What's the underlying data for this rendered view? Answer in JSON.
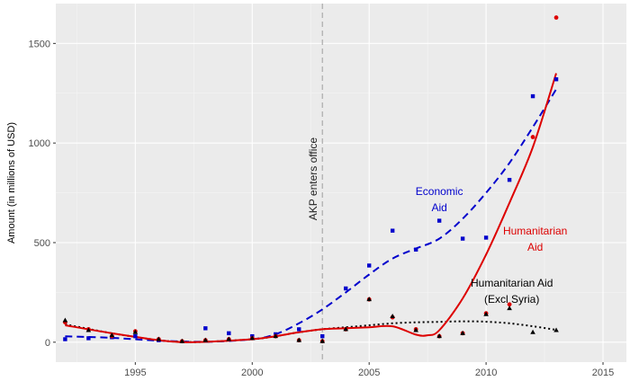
{
  "chart_data": {
    "type": "scatter",
    "title": "",
    "xlabel": "",
    "ylabel": "Amount (in millions of USD)",
    "xlim": [
      1991.6,
      2016.0
    ],
    "ylim": [
      -100,
      1700
    ],
    "x_ticks": [
      1995,
      2000,
      2005,
      2010,
      2015
    ],
    "y_ticks": [
      0,
      500,
      1000,
      1500
    ],
    "grid": true,
    "legend": "none",
    "vline": {
      "x": 2003,
      "label": "AKP enters office",
      "color": "#aaaaaa"
    },
    "series": [
      {
        "name": "Economic Aid",
        "label_lines": [
          "Economic",
          "Aid"
        ],
        "color": "#0000cc",
        "marker": "square",
        "line_style": "dashed",
        "label_pos": [
          2008.0,
          740
        ],
        "points": [
          [
            1992,
            15
          ],
          [
            1993,
            20
          ],
          [
            1994,
            25
          ],
          [
            1995,
            30
          ],
          [
            1996,
            10
          ],
          [
            1998,
            70
          ],
          [
            1999,
            45
          ],
          [
            2000,
            30
          ],
          [
            2001,
            40
          ],
          [
            2002,
            65
          ],
          [
            2003,
            30
          ],
          [
            2004,
            270
          ],
          [
            2005,
            385
          ],
          [
            2006,
            560
          ],
          [
            2007,
            465
          ],
          [
            2008,
            610
          ],
          [
            2009,
            520
          ],
          [
            2010,
            525
          ],
          [
            2011,
            815
          ],
          [
            2012,
            1235
          ],
          [
            2013,
            1320
          ]
        ],
        "trend": [
          [
            1992,
            30
          ],
          [
            1994,
            22
          ],
          [
            1996,
            8
          ],
          [
            1998,
            2
          ],
          [
            2000,
            15
          ],
          [
            2001,
            40
          ],
          [
            2002,
            95
          ],
          [
            2003,
            165
          ],
          [
            2004,
            250
          ],
          [
            2005,
            340
          ],
          [
            2006,
            420
          ],
          [
            2007,
            470
          ],
          [
            2008,
            520
          ],
          [
            2009,
            620
          ],
          [
            2010,
            750
          ],
          [
            2011,
            900
          ],
          [
            2012,
            1080
          ],
          [
            2013,
            1270
          ]
        ]
      },
      {
        "name": "Humanitarian Aid",
        "label_lines": [
          "Humanitarian",
          "Aid"
        ],
        "color": "#dd0000",
        "marker": "circle",
        "line_style": "solid",
        "label_pos": [
          2012.1,
          540
        ],
        "points": [
          [
            1992,
            100
          ],
          [
            1993,
            65
          ],
          [
            1994,
            30
          ],
          [
            1995,
            55
          ],
          [
            1996,
            15
          ],
          [
            1997,
            5
          ],
          [
            1998,
            10
          ],
          [
            1999,
            15
          ],
          [
            2000,
            20
          ],
          [
            2001,
            30
          ],
          [
            2002,
            10
          ],
          [
            2003,
            5
          ],
          [
            2004,
            65
          ],
          [
            2005,
            215
          ],
          [
            2006,
            125
          ],
          [
            2007,
            65
          ],
          [
            2008,
            30
          ],
          [
            2009,
            45
          ],
          [
            2010,
            145
          ],
          [
            2011,
            190
          ],
          [
            2012,
            1030
          ],
          [
            2013,
            1630
          ]
        ],
        "trend": [
          [
            1992,
            85
          ],
          [
            1994,
            45
          ],
          [
            1996,
            10
          ],
          [
            1997,
            0
          ],
          [
            1998,
            2
          ],
          [
            2000,
            15
          ],
          [
            2001,
            30
          ],
          [
            2002,
            50
          ],
          [
            2003,
            65
          ],
          [
            2004,
            70
          ],
          [
            2005,
            75
          ],
          [
            2006,
            80
          ],
          [
            2007,
            38
          ],
          [
            2007.5,
            35
          ],
          [
            2008,
            60
          ],
          [
            2009,
            220
          ],
          [
            2010,
            440
          ],
          [
            2011,
            700
          ],
          [
            2012,
            980
          ],
          [
            2013,
            1350
          ]
        ]
      },
      {
        "name": "Humanitarian Aid (Excl Syria)",
        "label_lines": [
          "Humanitarian Aid",
          "(Excl Syria)"
        ],
        "color": "#000000",
        "marker": "triangle",
        "line_style": "dotted",
        "label_pos": [
          2011.1,
          280
        ],
        "points": [
          [
            1992,
            110
          ],
          [
            1993,
            60
          ],
          [
            1994,
            35
          ],
          [
            1995,
            50
          ],
          [
            1996,
            15
          ],
          [
            1997,
            5
          ],
          [
            1998,
            10
          ],
          [
            1999,
            15
          ],
          [
            2000,
            20
          ],
          [
            2001,
            30
          ],
          [
            2002,
            10
          ],
          [
            2003,
            5
          ],
          [
            2004,
            65
          ],
          [
            2005,
            215
          ],
          [
            2006,
            130
          ],
          [
            2007,
            60
          ],
          [
            2008,
            30
          ],
          [
            2009,
            45
          ],
          [
            2010,
            140
          ],
          [
            2011,
            170
          ],
          [
            2012,
            50
          ],
          [
            2013,
            60
          ]
        ],
        "trend": [
          [
            1992,
            90
          ],
          [
            1994,
            45
          ],
          [
            1996,
            10
          ],
          [
            1997,
            2
          ],
          [
            1998,
            2
          ],
          [
            2000,
            15
          ],
          [
            2001,
            30
          ],
          [
            2002,
            50
          ],
          [
            2003,
            65
          ],
          [
            2004,
            75
          ],
          [
            2005,
            85
          ],
          [
            2006,
            95
          ],
          [
            2007,
            100
          ],
          [
            2008,
            102
          ],
          [
            2009,
            105
          ],
          [
            2010,
            103
          ],
          [
            2011,
            95
          ],
          [
            2012,
            80
          ],
          [
            2013,
            62
          ]
        ]
      }
    ]
  }
}
